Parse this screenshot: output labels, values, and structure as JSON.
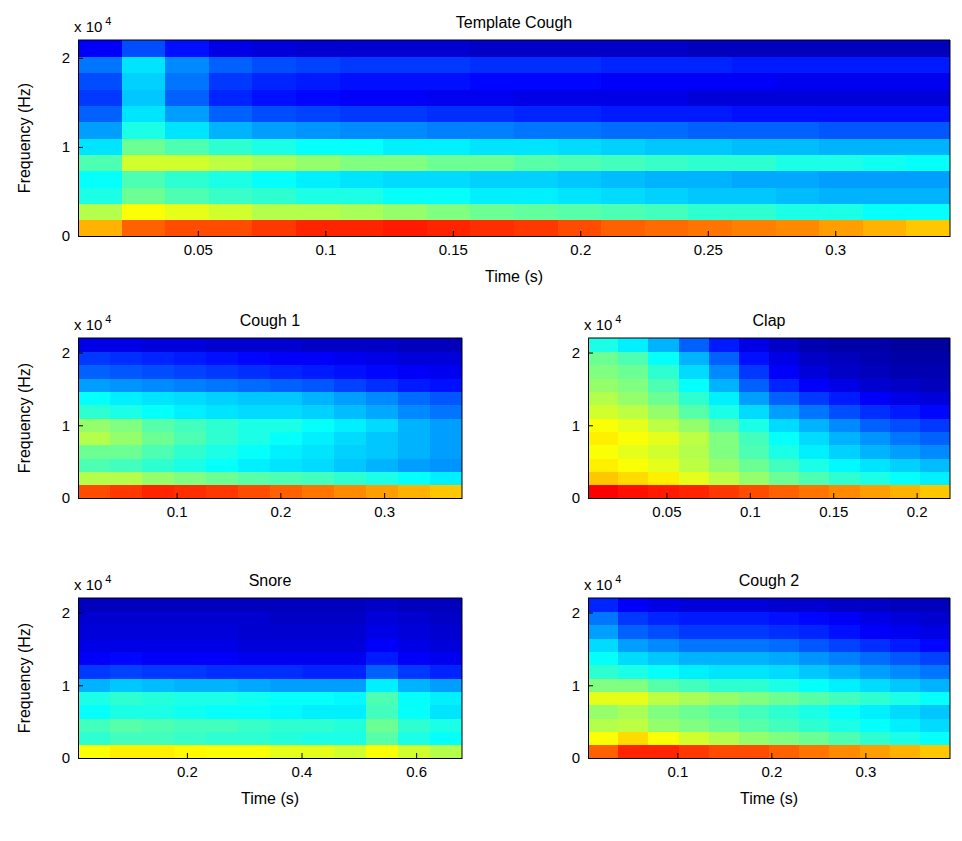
{
  "chart_data": [
    {
      "type": "heatmap",
      "title": "Template Cough",
      "xlabel": "Time (s)",
      "ylabel": "Frequency (Hz)",
      "y_scale_label": {
        "text": "x 10",
        "exponent": 4
      },
      "xlim": [
        0.003,
        0.345
      ],
      "xticks": [
        0.05,
        0.1,
        0.15,
        0.2,
        0.25,
        0.3
      ],
      "ylim": [
        0,
        2.2
      ],
      "yticks": [
        0,
        1,
        2
      ],
      "zlim": [
        0,
        100
      ],
      "cells": [
        [
          70,
          78,
          80,
          80,
          82,
          84,
          84,
          85,
          84,
          83,
          82,
          80,
          78,
          77,
          76,
          75,
          74,
          72,
          70,
          68
        ],
        [
          55,
          62,
          60,
          58,
          55,
          55,
          54,
          52,
          50,
          48,
          47,
          46,
          45,
          44,
          42,
          42,
          40,
          40,
          38,
          38
        ],
        [
          40,
          48,
          45,
          43,
          42,
          40,
          40,
          38,
          38,
          36,
          36,
          35,
          34,
          33,
          32,
          32,
          31,
          30,
          30,
          30
        ],
        [
          38,
          45,
          42,
          40,
          38,
          36,
          35,
          34,
          34,
          33,
          33,
          32,
          31,
          30,
          30,
          29,
          29,
          28,
          28,
          28
        ],
        [
          45,
          58,
          58,
          56,
          54,
          52,
          50,
          50,
          48,
          48,
          46,
          45,
          44,
          43,
          42,
          42,
          40,
          40,
          39,
          38
        ],
        [
          35,
          48,
          45,
          42,
          40,
          38,
          38,
          36,
          36,
          35,
          35,
          34,
          33,
          32,
          32,
          31,
          31,
          30,
          30,
          30
        ],
        [
          28,
          40,
          35,
          30,
          28,
          27,
          26,
          26,
          25,
          25,
          24,
          24,
          23,
          23,
          22,
          22,
          22,
          21,
          21,
          21
        ],
        [
          22,
          35,
          28,
          22,
          20,
          19,
          18,
          18,
          17,
          17,
          16,
          16,
          15,
          15,
          15,
          14,
          14,
          14,
          14,
          14
        ],
        [
          18,
          32,
          22,
          16,
          14,
          13,
          12,
          12,
          11,
          11,
          10,
          10,
          10,
          10,
          9,
          9,
          9,
          9,
          9,
          9
        ],
        [
          20,
          33,
          24,
          18,
          16,
          15,
          14,
          14,
          14,
          13,
          13,
          13,
          12,
          12,
          12,
          12,
          11,
          11,
          11,
          11
        ],
        [
          24,
          35,
          26,
          22,
          20,
          19,
          18,
          18,
          18,
          17,
          17,
          17,
          16,
          16,
          16,
          15,
          15,
          15,
          15,
          15
        ],
        [
          12,
          20,
          14,
          10,
          9,
          8,
          8,
          8,
          8,
          7,
          7,
          7,
          7,
          7,
          6,
          6,
          6,
          6,
          6,
          6
        ]
      ]
    },
    {
      "type": "heatmap",
      "title": "Cough 1",
      "ylabel": "Frequency (Hz)",
      "y_scale_label": {
        "text": "x 10",
        "exponent": 4
      },
      "xlim": [
        0.005,
        0.375
      ],
      "xticks": [
        0.1,
        0.2,
        0.3
      ],
      "ylim": [
        0,
        2.2
      ],
      "yticks": [
        0,
        1,
        2
      ],
      "zlim": [
        0,
        100
      ],
      "cells": [
        [
          80,
          82,
          84,
          83,
          82,
          80,
          78,
          76,
          74,
          72,
          70,
          68
        ],
        [
          55,
          55,
          52,
          50,
          48,
          46,
          45,
          44,
          42,
          40,
          38,
          36
        ],
        [
          45,
          44,
          42,
          40,
          38,
          36,
          35,
          34,
          32,
          30,
          28,
          27
        ],
        [
          48,
          48,
          45,
          42,
          40,
          38,
          36,
          35,
          33,
          32,
          30,
          28
        ],
        [
          55,
          52,
          48,
          45,
          42,
          40,
          38,
          36,
          34,
          32,
          30,
          28
        ],
        [
          52,
          50,
          46,
          44,
          42,
          40,
          40,
          38,
          36,
          34,
          30,
          28
        ],
        [
          42,
          40,
          38,
          36,
          35,
          34,
          34,
          33,
          31,
          29,
          26,
          24
        ],
        [
          38,
          36,
          35,
          34,
          33,
          32,
          32,
          30,
          28,
          26,
          23,
          21
        ],
        [
          28,
          27,
          26,
          25,
          24,
          23,
          22,
          21,
          19,
          17,
          15,
          14
        ],
        [
          22,
          21,
          20,
          19,
          18,
          17,
          16,
          15,
          14,
          13,
          12,
          11
        ],
        [
          18,
          17,
          16,
          15,
          14,
          13,
          12,
          12,
          11,
          10,
          9,
          9
        ],
        [
          10,
          10,
          9,
          9,
          8,
          8,
          8,
          7,
          7,
          7,
          6,
          6
        ]
      ]
    },
    {
      "type": "heatmap",
      "title": "Clap",
      "y_scale_label": {
        "text": "x 10",
        "exponent": 4
      },
      "xlim": [
        0.003,
        0.22
      ],
      "xticks": [
        0.05,
        0.1,
        0.15,
        0.2
      ],
      "ylim": [
        0,
        2.2
      ],
      "yticks": [
        0,
        1,
        2
      ],
      "zlim": [
        0,
        100
      ],
      "cells": [
        [
          88,
          86,
          85,
          84,
          82,
          80,
          78,
          76,
          74,
          72,
          70,
          68
        ],
        [
          68,
          66,
          64,
          60,
          56,
          52,
          48,
          45,
          42,
          40,
          38,
          36
        ],
        [
          64,
          62,
          60,
          56,
          52,
          48,
          44,
          40,
          37,
          35,
          33,
          31
        ],
        [
          62,
          60,
          58,
          55,
          50,
          45,
          40,
          36,
          33,
          30,
          28,
          26
        ],
        [
          64,
          62,
          60,
          56,
          50,
          44,
          38,
          34,
          30,
          27,
          24,
          22
        ],
        [
          62,
          60,
          56,
          52,
          46,
          40,
          34,
          30,
          26,
          22,
          20,
          18
        ],
        [
          58,
          56,
          52,
          46,
          40,
          34,
          28,
          24,
          20,
          17,
          15,
          13
        ],
        [
          55,
          52,
          48,
          42,
          36,
          28,
          22,
          18,
          15,
          12,
          10,
          9
        ],
        [
          52,
          50,
          45,
          38,
          30,
          22,
          16,
          12,
          10,
          8,
          7,
          6
        ],
        [
          50,
          48,
          42,
          34,
          26,
          18,
          12,
          9,
          7,
          6,
          5,
          5
        ],
        [
          48,
          45,
          38,
          30,
          22,
          14,
          10,
          7,
          6,
          5,
          4,
          4
        ],
        [
          40,
          36,
          30,
          22,
          15,
          10,
          7,
          5,
          4,
          4,
          3,
          3
        ]
      ]
    },
    {
      "type": "heatmap",
      "title": "Snore",
      "xlabel": "Time (s)",
      "ylabel": "Frequency (Hz)",
      "y_scale_label": {
        "text": "x 10",
        "exponent": 4
      },
      "xlim": [
        0.01,
        0.68
      ],
      "xticks": [
        0.2,
        0.4,
        0.6
      ],
      "ylim": [
        0,
        2.2
      ],
      "yticks": [
        0,
        1,
        2
      ],
      "zlim": [
        0,
        100
      ],
      "cells": [
        [
          62,
          64,
          64,
          63,
          62,
          62,
          60,
          60,
          58,
          62,
          58,
          55
        ],
        [
          42,
          44,
          44,
          43,
          42,
          42,
          41,
          40,
          40,
          46,
          40,
          38
        ],
        [
          44,
          46,
          45,
          44,
          44,
          43,
          42,
          42,
          41,
          48,
          42,
          40
        ],
        [
          38,
          40,
          40,
          39,
          38,
          38,
          37,
          36,
          36,
          44,
          38,
          35
        ],
        [
          40,
          42,
          41,
          40,
          40,
          39,
          38,
          38,
          37,
          45,
          38,
          36
        ],
        [
          30,
          32,
          31,
          30,
          30,
          29,
          28,
          28,
          28,
          36,
          30,
          28
        ],
        [
          18,
          19,
          18,
          18,
          17,
          17,
          17,
          16,
          16,
          22,
          18,
          16
        ],
        [
          12,
          13,
          12,
          12,
          12,
          11,
          11,
          11,
          11,
          15,
          12,
          11
        ],
        [
          10,
          10,
          10,
          10,
          10,
          9,
          9,
          9,
          9,
          12,
          10,
          9
        ],
        [
          9,
          9,
          9,
          9,
          9,
          8,
          8,
          8,
          8,
          10,
          9,
          8
        ],
        [
          8,
          8,
          8,
          8,
          8,
          8,
          7,
          7,
          7,
          9,
          8,
          7
        ],
        [
          6,
          6,
          6,
          6,
          6,
          6,
          6,
          6,
          6,
          7,
          6,
          6
        ]
      ]
    },
    {
      "type": "heatmap",
      "title": "Cough 2",
      "xlabel": "Time (s)",
      "y_scale_label": {
        "text": "x 10",
        "exponent": 4
      },
      "xlim": [
        0.005,
        0.39
      ],
      "xticks": [
        0.1,
        0.2,
        0.3
      ],
      "ylim": [
        0,
        2.2
      ],
      "yticks": [
        0,
        1,
        2
      ],
      "zlim": [
        0,
        100
      ],
      "cells": [
        [
          78,
          84,
          84,
          82,
          80,
          80,
          78,
          76,
          74,
          72,
          70,
          68
        ],
        [
          62,
          66,
          62,
          58,
          55,
          52,
          50,
          48,
          45,
          42,
          40,
          38
        ],
        [
          55,
          56,
          52,
          50,
          48,
          46,
          44,
          42,
          40,
          38,
          36,
          34
        ],
        [
          52,
          54,
          50,
          48,
          46,
          44,
          42,
          40,
          38,
          36,
          34,
          32
        ],
        [
          60,
          60,
          56,
          54,
          52,
          50,
          48,
          46,
          44,
          42,
          40,
          38
        ],
        [
          50,
          50,
          46,
          44,
          42,
          42,
          40,
          38,
          36,
          34,
          32,
          30
        ],
        [
          42,
          40,
          38,
          36,
          35,
          35,
          34,
          32,
          30,
          28,
          26,
          24
        ],
        [
          38,
          34,
          32,
          30,
          30,
          30,
          29,
          27,
          25,
          23,
          21,
          19
        ],
        [
          34,
          28,
          26,
          24,
          24,
          24,
          23,
          21,
          19,
          17,
          15,
          13
        ],
        [
          28,
          22,
          20,
          18,
          18,
          18,
          17,
          16,
          14,
          12,
          11,
          10
        ],
        [
          24,
          18,
          16,
          15,
          15,
          15,
          14,
          13,
          12,
          10,
          9,
          8
        ],
        [
          16,
          12,
          10,
          9,
          9,
          9,
          8,
          8,
          7,
          7,
          6,
          6
        ]
      ]
    }
  ]
}
